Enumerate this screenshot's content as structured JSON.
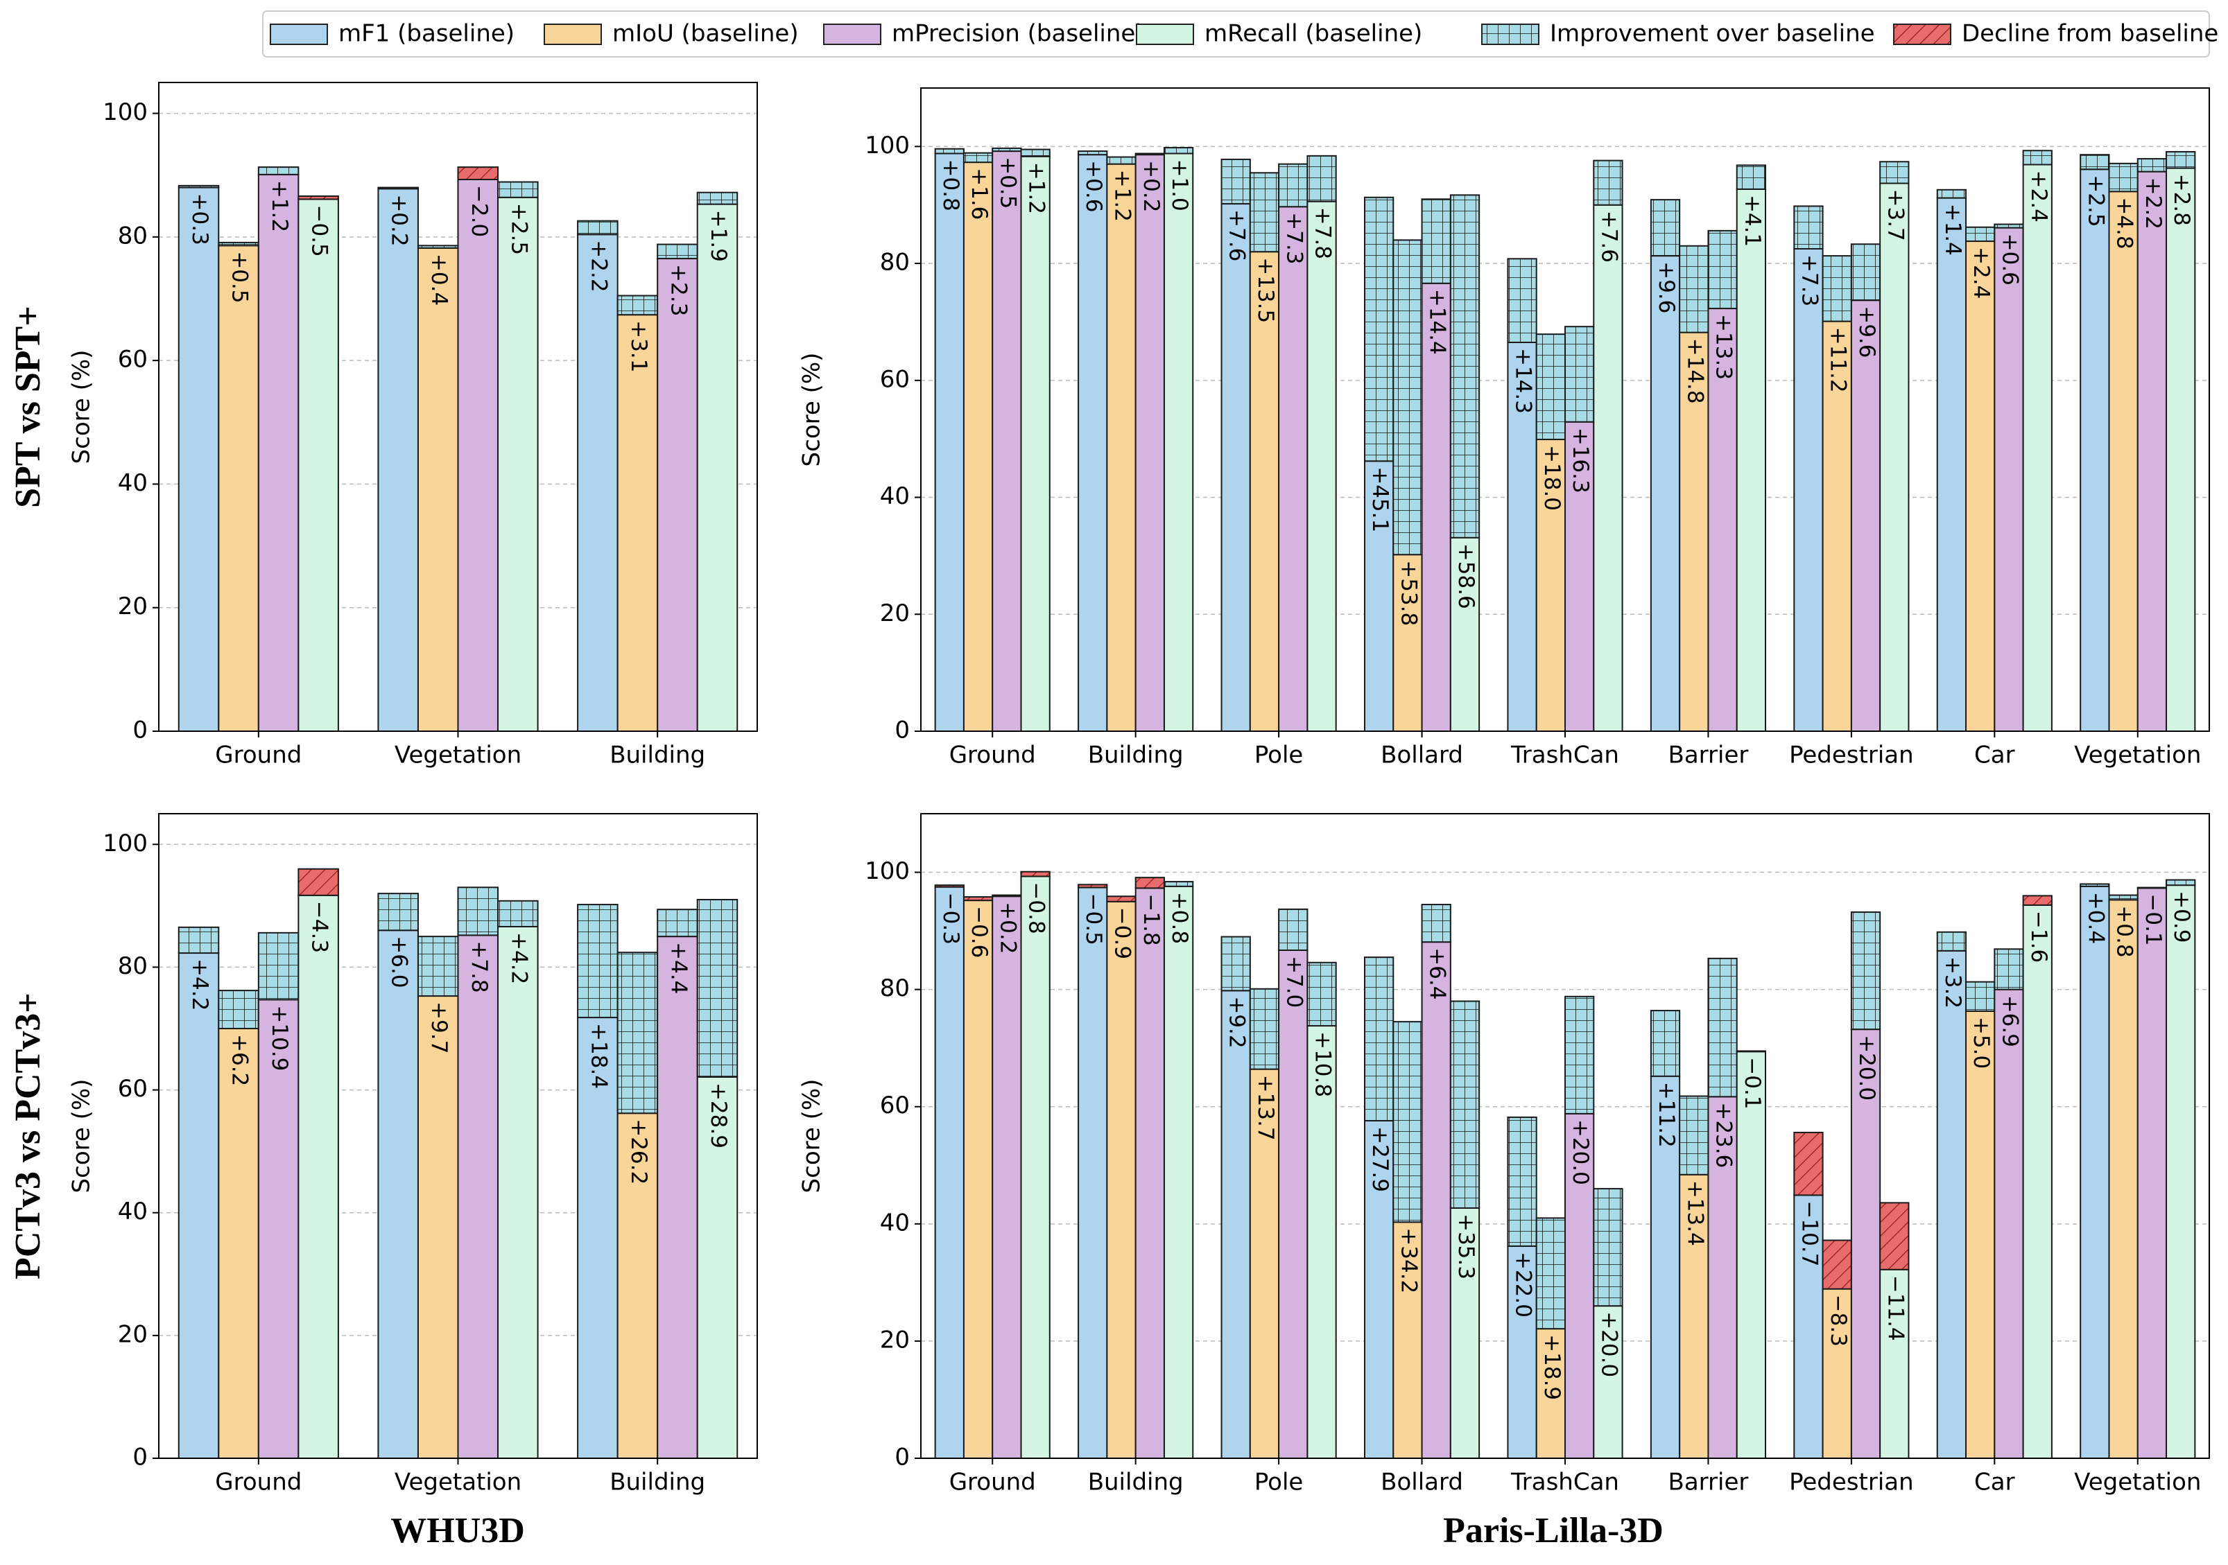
{
  "legend": {
    "series": [
      {
        "name": "mF1 (baseline)",
        "color": "#aed4ee"
      },
      {
        "name": "mIoU (baseline)",
        "color": "#fad59a"
      },
      {
        "name": "mPrecision (baseline)",
        "color": "#d6b4e0"
      },
      {
        "name": "mRecall (baseline)",
        "color": "#d4f5e4"
      }
    ],
    "improvement": {
      "name": "Improvement over baseline",
      "color": "#a7dbe6"
    },
    "decline": {
      "name": "Decline from baseline",
      "color": "#e96c6c"
    }
  },
  "row_labels": [
    "SPT vs SPT+",
    "PCTv3 vs PCTv3+"
  ],
  "column_labels": [
    "WHU3D",
    "Paris-Lilla-3D"
  ],
  "chart_data": [
    {
      "type": "bar",
      "ylabel": "Score (%)",
      "categories": [
        "Ground",
        "Vegetation",
        "Building"
      ],
      "ylim": [
        0,
        105
      ],
      "yticks": [
        0,
        20,
        40,
        60,
        80,
        100
      ],
      "grid": true,
      "series": [
        {
          "values": [
            88.0,
            87.8,
            80.4
          ],
          "deltas": [
            0.3,
            0.2,
            2.2
          ],
          "delta_labels": [
            "+0.3",
            "+0.2",
            "+2.2"
          ]
        },
        {
          "values": [
            78.6,
            78.2,
            67.4
          ],
          "deltas": [
            0.5,
            0.4,
            3.1
          ],
          "delta_labels": [
            "+0.5",
            "+0.4",
            "+3.1"
          ]
        },
        {
          "values": [
            90.1,
            91.3,
            76.5
          ],
          "deltas": [
            1.2,
            -2.0,
            2.3
          ],
          "delta_labels": [
            "+1.2",
            "−2.0",
            "+2.3"
          ]
        },
        {
          "values": [
            86.6,
            86.4,
            85.3
          ],
          "deltas": [
            -0.5,
            2.5,
            1.9
          ],
          "delta_labels": [
            "−0.5",
            "+2.5",
            "+1.9"
          ]
        }
      ]
    },
    {
      "type": "bar",
      "ylabel": "Score (%)",
      "categories": [
        "Ground",
        "Building",
        "Pole",
        "Bollard",
        "TrashCan",
        "Barrier",
        "Pedestrian",
        "Car",
        "Vegetation"
      ],
      "ylim": [
        0,
        110
      ],
      "yticks": [
        0,
        20,
        40,
        60,
        80,
        100
      ],
      "grid": true,
      "series": [
        {
          "values": [
            98.8,
            98.6,
            90.2,
            46.2,
            66.5,
            81.3,
            82.5,
            91.2,
            96.1
          ],
          "deltas": [
            0.8,
            0.6,
            7.6,
            45.1,
            14.3,
            9.6,
            7.3,
            1.4,
            2.5
          ],
          "delta_labels": [
            "+0.8",
            "+0.6",
            "+7.6",
            "+45.1",
            "+14.3",
            "+9.6",
            "+7.3",
            "+1.4",
            "+2.5"
          ]
        },
        {
          "values": [
            97.3,
            97.0,
            82.0,
            30.2,
            49.9,
            68.2,
            70.1,
            83.8,
            92.3
          ],
          "deltas": [
            1.6,
            1.2,
            13.5,
            53.8,
            18.0,
            14.8,
            11.2,
            2.4,
            4.8
          ],
          "delta_labels": [
            "+1.6",
            "+1.2",
            "+13.5",
            "+53.8",
            "+18.0",
            "+14.8",
            "+11.2",
            "+2.4",
            "+4.8"
          ]
        },
        {
          "values": [
            99.2,
            98.6,
            89.7,
            76.6,
            52.9,
            72.3,
            73.7,
            86.1,
            95.7
          ],
          "deltas": [
            0.5,
            0.2,
            7.3,
            14.4,
            16.3,
            13.3,
            9.6,
            0.6,
            2.2
          ],
          "delta_labels": [
            "+0.5",
            "+0.2",
            "+7.3",
            "+14.4",
            "+16.3",
            "+13.3",
            "+9.6",
            "+0.6",
            "+2.2"
          ]
        },
        {
          "values": [
            98.3,
            98.8,
            90.6,
            33.1,
            90.0,
            92.7,
            93.7,
            96.9,
            96.3
          ],
          "deltas": [
            1.2,
            1.0,
            7.8,
            58.6,
            7.6,
            4.1,
            3.7,
            2.4,
            2.8
          ],
          "delta_labels": [
            "+1.2",
            "+1.0",
            "+7.8",
            "+58.6",
            "+7.6",
            "+4.1",
            "+3.7",
            "+2.4",
            "+2.8"
          ]
        }
      ]
    },
    {
      "type": "bar",
      "ylabel": "Score (%)",
      "categories": [
        "Ground",
        "Vegetation",
        "Building"
      ],
      "ylim": [
        0,
        105
      ],
      "yticks": [
        0,
        20,
        40,
        60,
        80,
        100
      ],
      "grid": true,
      "series": [
        {
          "values": [
            82.3,
            86.0,
            71.8
          ],
          "deltas": [
            4.2,
            6.0,
            18.4
          ],
          "delta_labels": [
            "+4.2",
            "+6.0",
            "+18.4"
          ]
        },
        {
          "values": [
            70.0,
            75.3,
            56.2
          ],
          "deltas": [
            6.2,
            9.7,
            26.2
          ],
          "delta_labels": [
            "+6.2",
            "+9.7",
            "+26.2"
          ]
        },
        {
          "values": [
            74.7,
            85.2,
            85.0
          ],
          "deltas": [
            10.9,
            7.8,
            4.4
          ],
          "delta_labels": [
            "+10.9",
            "+7.8",
            "+4.4"
          ]
        },
        {
          "values": [
            96.0,
            86.6,
            62.1
          ],
          "deltas": [
            -4.3,
            4.2,
            28.9
          ],
          "delta_labels": [
            "−4.3",
            "+4.2",
            "+28.9"
          ]
        }
      ]
    },
    {
      "type": "bar",
      "ylabel": "Score (%)",
      "categories": [
        "Ground",
        "Building",
        "Pole",
        "Bollard",
        "TrashCan",
        "Barrier",
        "Pedestrian",
        "Car",
        "Vegetation"
      ],
      "ylim": [
        0,
        110
      ],
      "yticks": [
        0,
        20,
        40,
        60,
        80,
        100
      ],
      "grid": true,
      "series": [
        {
          "values": [
            97.8,
            97.9,
            79.8,
            57.6,
            36.2,
            65.2,
            55.6,
            86.6,
            97.6
          ],
          "deltas": [
            -0.3,
            -0.5,
            9.2,
            27.9,
            22.0,
            11.2,
            -10.7,
            3.2,
            0.4
          ],
          "delta_labels": [
            "−0.3",
            "−0.5",
            "+9.2",
            "+27.9",
            "+22.0",
            "+11.2",
            "−10.7",
            "+3.2",
            "+0.4"
          ]
        },
        {
          "values": [
            95.8,
            95.9,
            66.4,
            40.3,
            22.1,
            48.4,
            37.2,
            76.3,
            95.3
          ],
          "deltas": [
            -0.6,
            -0.9,
            13.7,
            34.2,
            18.9,
            13.4,
            -8.3,
            5.0,
            0.8
          ],
          "delta_labels": [
            "−0.6",
            "−0.9",
            "+13.7",
            "+34.2",
            "+18.9",
            "+13.4",
            "−8.3",
            "+5.0",
            "+0.8"
          ]
        },
        {
          "values": [
            95.9,
            99.1,
            86.7,
            88.1,
            58.8,
            61.7,
            73.2,
            80.0,
            97.4
          ],
          "deltas": [
            0.2,
            -1.8,
            7.0,
            6.4,
            20.0,
            23.6,
            20.0,
            6.9,
            -0.1
          ],
          "delta_labels": [
            "+0.2",
            "−1.8",
            "+7.0",
            "+6.4",
            "+20.0",
            "+23.6",
            "+20.0",
            "+6.9",
            "−0.1"
          ]
        },
        {
          "values": [
            100.1,
            97.6,
            73.8,
            42.7,
            26.0,
            69.5,
            43.6,
            96.0,
            97.8
          ],
          "deltas": [
            -0.8,
            0.8,
            10.8,
            35.3,
            20.0,
            -0.1,
            -11.4,
            -1.6,
            0.9
          ],
          "delta_labels": [
            "−0.8",
            "+0.8",
            "+10.8",
            "+35.3",
            "+20.0",
            "−0.1",
            "−11.4",
            "−1.6",
            "+0.9"
          ]
        }
      ]
    }
  ]
}
